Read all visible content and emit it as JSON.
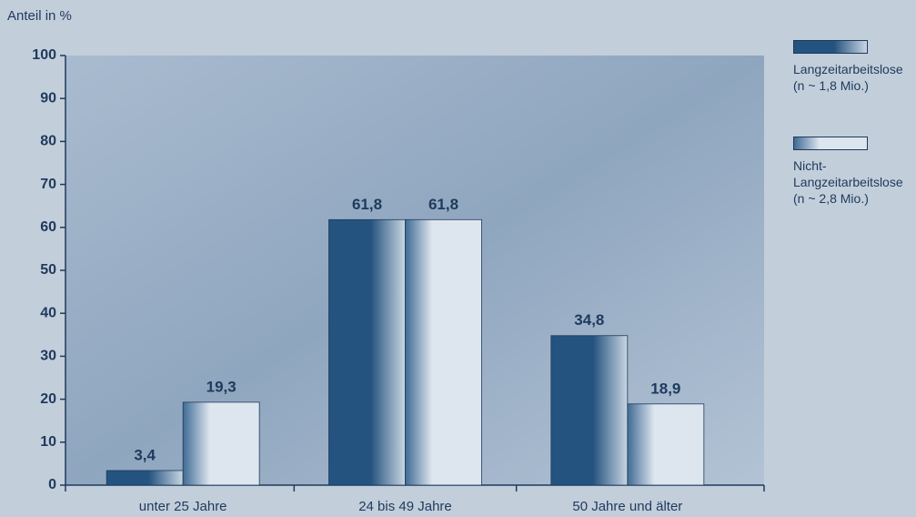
{
  "chart_data": {
    "type": "bar",
    "y_label": "Anteil in %",
    "categories": [
      "unter 25 Jahre",
      "24 bis 49 Jahre",
      "50 Jahre und älter"
    ],
    "series": [
      {
        "name": "Langzeitarbeitslose (n ~ 1,8 Mio.)",
        "color": "#24537f",
        "values": [
          3.4,
          61.8,
          34.8
        ],
        "value_labels": [
          "3,4",
          "61,8",
          "34,8"
        ]
      },
      {
        "name": "Nicht-Langzeitarbeitslose (n ~ 2,8 Mio.)",
        "color": "#dde5ee",
        "values": [
          19.3,
          61.8,
          18.9
        ],
        "value_labels": [
          "19,3",
          "61,8",
          "18,9"
        ]
      }
    ],
    "ylim": [
      0,
      100
    ],
    "yticks": [
      0,
      10,
      20,
      30,
      40,
      50,
      60,
      70,
      80,
      90,
      100
    ],
    "legend": "right"
  }
}
